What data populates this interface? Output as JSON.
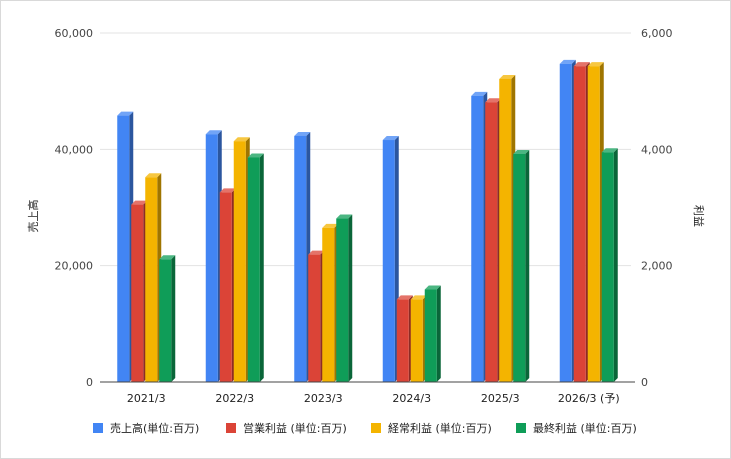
{
  "chart_data": {
    "type": "bar",
    "categories": [
      "2021/3",
      "2022/3",
      "2023/3",
      "2024/3",
      "2025/3",
      "2026/3 (予)"
    ],
    "left_axis": {
      "label": "売上高",
      "range": [
        0,
        60000
      ],
      "ticks": [
        "0",
        "20,000",
        "40,000",
        "60,000"
      ],
      "tick_values": [
        0,
        20000,
        40000,
        60000
      ]
    },
    "right_axis": {
      "label": "利益",
      "range": [
        0,
        6000
      ],
      "ticks": [
        "0",
        "2,000",
        "4,000",
        "6,000"
      ],
      "tick_values": [
        0,
        2000,
        4000,
        6000
      ]
    },
    "grid": true,
    "legend_position": "bottom",
    "series": [
      {
        "name": "売上高(単位:百万)",
        "axis": "left",
        "color": "#4285f4",
        "values": [
          45800,
          42600,
          42300,
          41600,
          49200,
          54700
        ]
      },
      {
        "name": "営業利益 (単位:百万)",
        "axis": "right",
        "color": "#db4437",
        "values": [
          3050,
          3260,
          2190,
          1420,
          4810,
          5430
        ]
      },
      {
        "name": "経常利益 (単位:百万)",
        "axis": "right",
        "color": "#f4b400",
        "values": [
          3520,
          4140,
          2650,
          1420,
          5210,
          5430
        ]
      },
      {
        "name": "最終利益 (単位:百万)",
        "axis": "right",
        "color": "#0f9d58",
        "values": [
          2110,
          3860,
          2810,
          1590,
          3920,
          3950
        ]
      }
    ]
  }
}
